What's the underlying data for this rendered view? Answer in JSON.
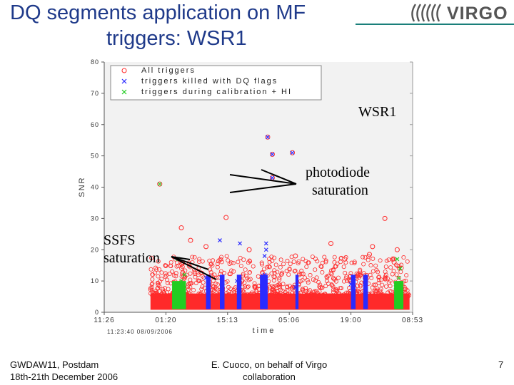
{
  "slide": {
    "title_line1": "DQ segments application on MF",
    "title_line2": "triggers: WSR1",
    "logo_text": "VIRGO",
    "annotations": {
      "wsr1": "WSR1",
      "photodiode_line1": "photodiode",
      "photodiode_line2": "saturation",
      "ssfs_line1": "SSFS",
      "ssfs_line2": "saturation"
    },
    "footer": {
      "left_line1": "GWDAW11,  Postdam",
      "left_line2": "18th-21th December 2006",
      "center_line1": "E. Cuoco, on behalf of Virgo",
      "center_line2": "collaboration",
      "page_number": "7"
    }
  },
  "chart_data": {
    "type": "scatter",
    "ylabel": "SNR",
    "xlabel": "time",
    "x_start_label": "11:23:40 08/09/2006",
    "ylim": [
      0,
      80
    ],
    "yticks": [
      "0",
      "10",
      "20",
      "30",
      "40",
      "50",
      "60",
      "70",
      "80"
    ],
    "xticks": [
      "11:26",
      "01:20",
      "15:13",
      "05:06",
      "19:00",
      "08:53"
    ],
    "legend_position": "top-left",
    "colors": {
      "all": "#ff2a2a",
      "killed": "#2a2aff",
      "calibration": "#22cc22"
    },
    "series": [
      {
        "name": "All triggers",
        "marker": "o",
        "color": "#ff2a2a",
        "points": [
          [
            0.53,
            56
          ],
          [
            0.545,
            50.5
          ],
          [
            0.61,
            51
          ],
          [
            0.545,
            43
          ],
          [
            0.91,
            30
          ],
          [
            0.395,
            30.3
          ],
          [
            0.25,
            27
          ],
          [
            0.18,
            41
          ],
          [
            0.87,
            21
          ],
          [
            0.735,
            22
          ],
          [
            0.95,
            20
          ],
          [
            0.28,
            23
          ],
          [
            0.33,
            21
          ],
          [
            0.47,
            20
          ],
          [
            0.62,
            18
          ],
          [
            0.78,
            17
          ],
          [
            0.86,
            18.5
          ],
          [
            0.94,
            16
          ]
        ]
      },
      {
        "name": "triggers killed with DQ flags",
        "marker": "x",
        "color": "#2a2aff",
        "points": [
          [
            0.53,
            56
          ],
          [
            0.545,
            50.5
          ],
          [
            0.61,
            51
          ],
          [
            0.545,
            43
          ],
          [
            0.375,
            23
          ],
          [
            0.44,
            22
          ],
          [
            0.525,
            22
          ],
          [
            0.525,
            20
          ],
          [
            0.52,
            18
          ],
          [
            0.33,
            11
          ],
          [
            0.38,
            11
          ],
          [
            0.43,
            10
          ],
          [
            0.52,
            12
          ],
          [
            0.62,
            8
          ],
          [
            0.8,
            9
          ],
          [
            0.845,
            9
          ]
        ]
      },
      {
        "name": "triggers during calibration + HI",
        "marker": "x",
        "color": "#22cc22",
        "points": [
          [
            0.18,
            41
          ],
          [
            0.24,
            17
          ],
          [
            0.26,
            12
          ],
          [
            0.25,
            10
          ],
          [
            0.95,
            17
          ],
          [
            0.96,
            14
          ],
          [
            0.955,
            11
          ],
          [
            0.945,
            8
          ],
          [
            0.23,
            7
          ],
          [
            0.96,
            7
          ]
        ]
      }
    ]
  }
}
